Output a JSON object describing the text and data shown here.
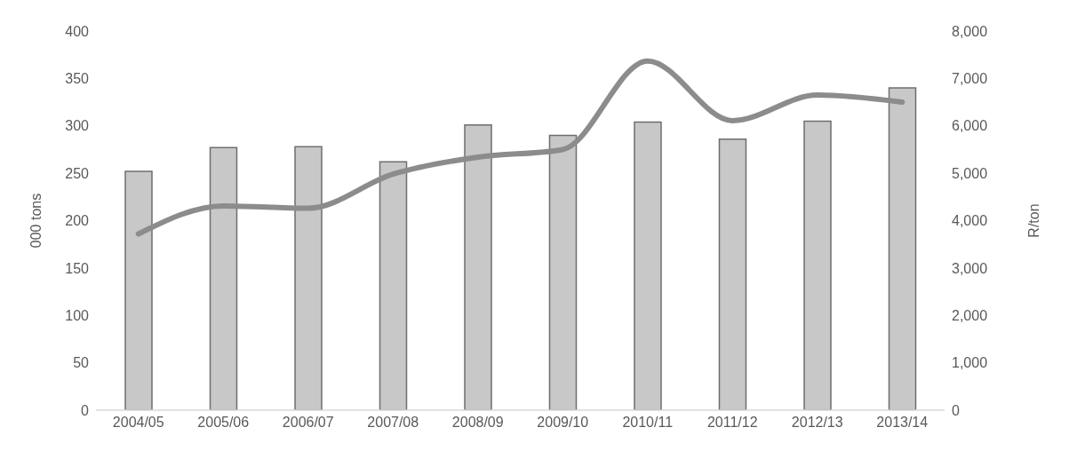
{
  "chart_data": {
    "type": "bar",
    "categories": [
      "2004/05",
      "2005/06",
      "2006/07",
      "2007/08",
      "2008/09",
      "2009/10",
      "2010/11",
      "2011/12",
      "2012/13",
      "2013/14"
    ],
    "series": [
      {
        "color": "#c8c8c8",
        "values": [
          252,
          277,
          278,
          262,
          301,
          290,
          304,
          286,
          305,
          340
        ]
      },
      {
        "type": "line",
        "axis": "y2",
        "color": "#8c8c8c",
        "values": [
          3720,
          4310,
          4260,
          4980,
          5340,
          5500,
          7370,
          6110,
          6650,
          6500
        ]
      }
    ],
    "ylabel": "000 tons",
    "y2label": "R/ton",
    "ylim": [
      0,
      400
    ],
    "yticks": [
      0,
      50,
      100,
      150,
      200,
      250,
      300,
      350,
      400
    ],
    "y2lim": [
      0,
      8000
    ],
    "y2ticks": [
      0,
      {
        "value": 1000,
        "label": "1,000"
      },
      {
        "value": 2000,
        "label": "2,000"
      },
      {
        "value": 3000,
        "label": "3,000"
      },
      {
        "value": 4000,
        "label": "4,000"
      },
      {
        "value": 5000,
        "label": "5,000"
      },
      {
        "value": 6000,
        "label": "6,000"
      },
      {
        "value": 7000,
        "label": "7,000"
      },
      {
        "value": 8000,
        "label": "8,000"
      }
    ],
    "grid": false,
    "legend": false,
    "marker": "none",
    "line_style": "solid"
  }
}
